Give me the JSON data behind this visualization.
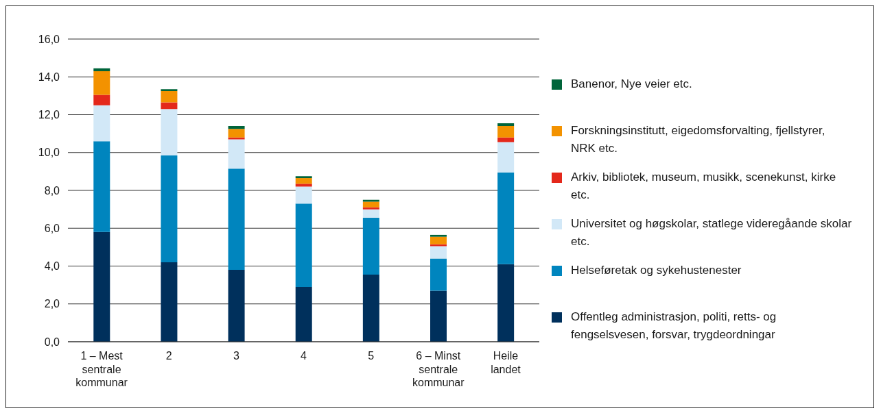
{
  "chart_data": {
    "type": "bar",
    "stacked": true,
    "categories": [
      "1 – Mest sentrale kommunar",
      "2",
      "3",
      "4",
      "5",
      "6 – Minst sentrale kommunar",
      "Heile landet"
    ],
    "series": [
      {
        "name": "Offentleg administrasjon, politi, retts- og fengselsvesen, forsvar, trygdeordningar",
        "color": "#00305c",
        "values": [
          5.8,
          4.2,
          3.8,
          2.9,
          3.55,
          2.7,
          4.1
        ]
      },
      {
        "name": "Helseføretak og sykehustenester",
        "color": "#0085be",
        "values": [
          4.8,
          5.65,
          5.35,
          4.4,
          3.0,
          1.7,
          4.85
        ]
      },
      {
        "name": "Universitet og høgskolar, statlege videregåande skolar etc.",
        "color": "#d2e8f7",
        "values": [
          1.9,
          2.45,
          1.55,
          0.9,
          0.45,
          0.65,
          1.6
        ]
      },
      {
        "name": "Arkiv, bibliotek, museum, musikk, scenekunst, kirke etc.",
        "color": "#e4281b",
        "values": [
          0.55,
          0.35,
          0.1,
          0.15,
          0.1,
          0.1,
          0.25
        ]
      },
      {
        "name": "Forskningsinstitutt, eigedomsforvalting, fjellstyrer, NRK etc.",
        "color": "#f39200",
        "values": [
          1.25,
          0.6,
          0.45,
          0.3,
          0.3,
          0.4,
          0.6
        ]
      },
      {
        "name": "Banenor, Nye veier etc.",
        "color": "#00643a",
        "values": [
          0.15,
          0.1,
          0.15,
          0.1,
          0.1,
          0.1,
          0.15
        ]
      }
    ],
    "ylim": [
      0,
      16
    ],
    "yticks": [
      {
        "value": 0,
        "label": "0,0"
      },
      {
        "value": 2,
        "label": "2,0"
      },
      {
        "value": 4,
        "label": "4,0"
      },
      {
        "value": 6,
        "label": "6,0"
      },
      {
        "value": 8,
        "label": "8,0"
      },
      {
        "value": 10,
        "label": "10,0"
      },
      {
        "value": 12,
        "label": "12,0"
      },
      {
        "value": 14,
        "label": "14,0"
      },
      {
        "value": 16,
        "label": "16,0"
      }
    ],
    "grid": "y",
    "legend": "right"
  }
}
